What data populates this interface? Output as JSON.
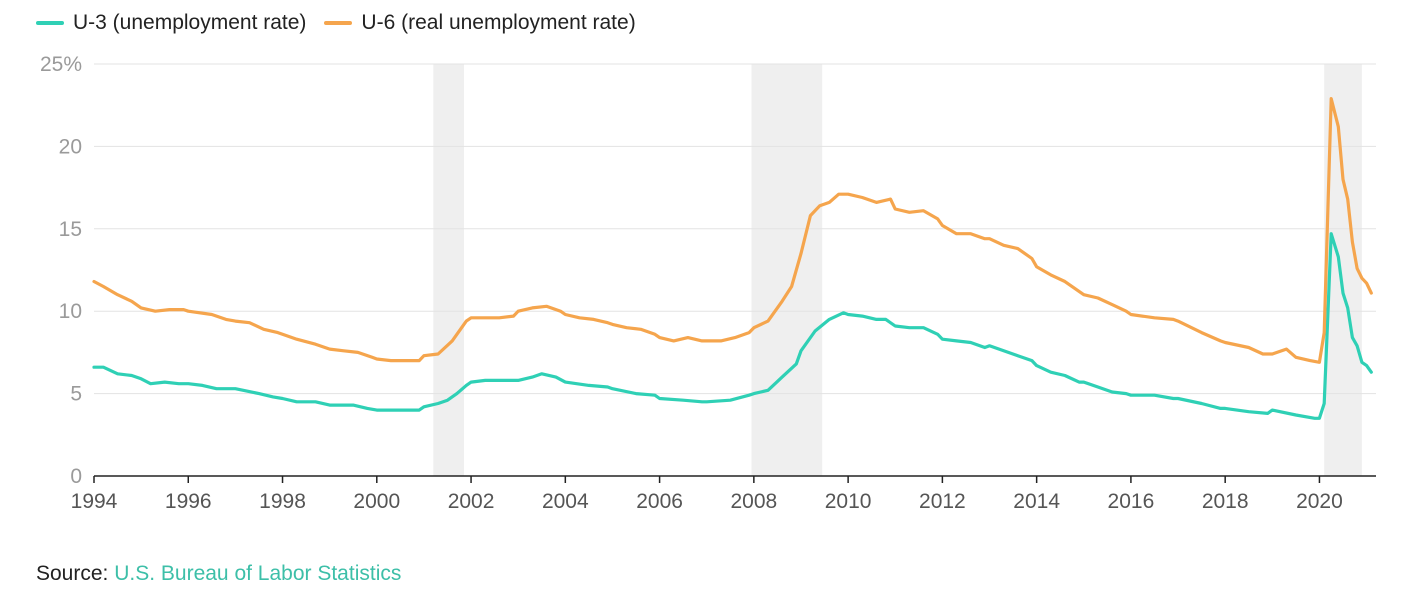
{
  "legend": [
    {
      "label": "U-3 (unemployment rate)",
      "color": "#2fd0b5"
    },
    {
      "label": "U-6 (real unemployment rate)",
      "color": "#f5a54d"
    }
  ],
  "source": {
    "prefix": "Source: ",
    "link_text": "U.S. Bureau of Labor Statistics",
    "link_color": "#3dbfa8"
  },
  "chart_data": {
    "type": "line",
    "title": "",
    "xlabel": "",
    "ylabel": "",
    "xlim": [
      1994,
      2021.2
    ],
    "ylim": [
      0,
      25
    ],
    "grid": true,
    "legend_position": "top-left",
    "x_tick_labels": [
      "1994",
      "1996",
      "1998",
      "2000",
      "2002",
      "2004",
      "2006",
      "2008",
      "2010",
      "2012",
      "2014",
      "2016",
      "2018",
      "2020"
    ],
    "y_tick_labels": [
      {
        "value": 0,
        "label": "0"
      },
      {
        "value": 5,
        "label": "5"
      },
      {
        "value": 10,
        "label": "10"
      },
      {
        "value": 15,
        "label": "15"
      },
      {
        "value": 20,
        "label": "20"
      },
      {
        "value": 25,
        "label": "25%"
      }
    ],
    "recession_shading": [
      [
        2001.2,
        2001.85
      ],
      [
        2007.95,
        2009.45
      ],
      [
        2020.1,
        2020.9
      ]
    ],
    "series": [
      {
        "name": "U-3 (unemployment rate)",
        "color": "#2fd0b5",
        "points": [
          [
            1994.0,
            6.6
          ],
          [
            1994.2,
            6.6
          ],
          [
            1994.5,
            6.2
          ],
          [
            1994.8,
            6.1
          ],
          [
            1995.0,
            5.9
          ],
          [
            1995.2,
            5.6
          ],
          [
            1995.5,
            5.7
          ],
          [
            1995.8,
            5.6
          ],
          [
            1996.0,
            5.6
          ],
          [
            1996.3,
            5.5
          ],
          [
            1996.6,
            5.3
          ],
          [
            1996.9,
            5.3
          ],
          [
            1997.0,
            5.3
          ],
          [
            1997.5,
            5.0
          ],
          [
            1997.8,
            4.8
          ],
          [
            1998.0,
            4.7
          ],
          [
            1998.3,
            4.5
          ],
          [
            1998.7,
            4.5
          ],
          [
            1999.0,
            4.3
          ],
          [
            1999.5,
            4.3
          ],
          [
            1999.8,
            4.1
          ],
          [
            2000.0,
            4.0
          ],
          [
            2000.3,
            4.0
          ],
          [
            2000.6,
            4.0
          ],
          [
            2000.9,
            4.0
          ],
          [
            2001.0,
            4.2
          ],
          [
            2001.3,
            4.4
          ],
          [
            2001.5,
            4.6
          ],
          [
            2001.7,
            5.0
          ],
          [
            2001.9,
            5.5
          ],
          [
            2002.0,
            5.7
          ],
          [
            2002.3,
            5.8
          ],
          [
            2002.7,
            5.8
          ],
          [
            2003.0,
            5.8
          ],
          [
            2003.3,
            6.0
          ],
          [
            2003.5,
            6.2
          ],
          [
            2003.8,
            6.0
          ],
          [
            2004.0,
            5.7
          ],
          [
            2004.5,
            5.5
          ],
          [
            2004.9,
            5.4
          ],
          [
            2005.0,
            5.3
          ],
          [
            2005.5,
            5.0
          ],
          [
            2005.9,
            4.9
          ],
          [
            2006.0,
            4.7
          ],
          [
            2006.5,
            4.6
          ],
          [
            2006.9,
            4.5
          ],
          [
            2007.0,
            4.5
          ],
          [
            2007.5,
            4.6
          ],
          [
            2007.9,
            4.9
          ],
          [
            2008.0,
            5.0
          ],
          [
            2008.3,
            5.2
          ],
          [
            2008.6,
            6.0
          ],
          [
            2008.9,
            6.8
          ],
          [
            2009.0,
            7.6
          ],
          [
            2009.3,
            8.8
          ],
          [
            2009.6,
            9.5
          ],
          [
            2009.9,
            9.9
          ],
          [
            2010.0,
            9.8
          ],
          [
            2010.3,
            9.7
          ],
          [
            2010.6,
            9.5
          ],
          [
            2010.8,
            9.5
          ],
          [
            2011.0,
            9.1
          ],
          [
            2011.3,
            9.0
          ],
          [
            2011.6,
            9.0
          ],
          [
            2011.9,
            8.6
          ],
          [
            2012.0,
            8.3
          ],
          [
            2012.3,
            8.2
          ],
          [
            2012.6,
            8.1
          ],
          [
            2012.9,
            7.8
          ],
          [
            2013.0,
            7.9
          ],
          [
            2013.3,
            7.6
          ],
          [
            2013.6,
            7.3
          ],
          [
            2013.9,
            7.0
          ],
          [
            2014.0,
            6.7
          ],
          [
            2014.3,
            6.3
          ],
          [
            2014.6,
            6.1
          ],
          [
            2014.9,
            5.7
          ],
          [
            2015.0,
            5.7
          ],
          [
            2015.3,
            5.4
          ],
          [
            2015.6,
            5.1
          ],
          [
            2015.9,
            5.0
          ],
          [
            2016.0,
            4.9
          ],
          [
            2016.5,
            4.9
          ],
          [
            2016.9,
            4.7
          ],
          [
            2017.0,
            4.7
          ],
          [
            2017.5,
            4.4
          ],
          [
            2017.9,
            4.1
          ],
          [
            2018.0,
            4.1
          ],
          [
            2018.5,
            3.9
          ],
          [
            2018.9,
            3.8
          ],
          [
            2019.0,
            4.0
          ],
          [
            2019.5,
            3.7
          ],
          [
            2019.9,
            3.5
          ],
          [
            2020.0,
            3.5
          ],
          [
            2020.1,
            4.4
          ],
          [
            2020.25,
            14.7
          ],
          [
            2020.4,
            13.3
          ],
          [
            2020.5,
            11.1
          ],
          [
            2020.6,
            10.2
          ],
          [
            2020.7,
            8.4
          ],
          [
            2020.8,
            7.9
          ],
          [
            2020.9,
            6.9
          ],
          [
            2021.0,
            6.7
          ],
          [
            2021.1,
            6.3
          ]
        ]
      },
      {
        "name": "U-6 (real unemployment rate)",
        "color": "#f5a54d",
        "points": [
          [
            1994.0,
            11.8
          ],
          [
            1994.2,
            11.5
          ],
          [
            1994.5,
            11.0
          ],
          [
            1994.8,
            10.6
          ],
          [
            1995.0,
            10.2
          ],
          [
            1995.3,
            10.0
          ],
          [
            1995.6,
            10.1
          ],
          [
            1995.9,
            10.1
          ],
          [
            1996.0,
            10.0
          ],
          [
            1996.5,
            9.8
          ],
          [
            1996.8,
            9.5
          ],
          [
            1997.0,
            9.4
          ],
          [
            1997.3,
            9.3
          ],
          [
            1997.6,
            8.9
          ],
          [
            1997.9,
            8.7
          ],
          [
            1998.0,
            8.6
          ],
          [
            1998.3,
            8.3
          ],
          [
            1998.7,
            8.0
          ],
          [
            1999.0,
            7.7
          ],
          [
            1999.3,
            7.6
          ],
          [
            1999.6,
            7.5
          ],
          [
            1999.9,
            7.2
          ],
          [
            2000.0,
            7.1
          ],
          [
            2000.3,
            7.0
          ],
          [
            2000.6,
            7.0
          ],
          [
            2000.9,
            7.0
          ],
          [
            2001.0,
            7.3
          ],
          [
            2001.3,
            7.4
          ],
          [
            2001.6,
            8.2
          ],
          [
            2001.8,
            9.0
          ],
          [
            2001.9,
            9.4
          ],
          [
            2002.0,
            9.6
          ],
          [
            2002.3,
            9.6
          ],
          [
            2002.6,
            9.6
          ],
          [
            2002.9,
            9.7
          ],
          [
            2003.0,
            10.0
          ],
          [
            2003.3,
            10.2
          ],
          [
            2003.6,
            10.3
          ],
          [
            2003.9,
            10.0
          ],
          [
            2004.0,
            9.8
          ],
          [
            2004.3,
            9.6
          ],
          [
            2004.6,
            9.5
          ],
          [
            2004.9,
            9.3
          ],
          [
            2005.0,
            9.2
          ],
          [
            2005.3,
            9.0
          ],
          [
            2005.6,
            8.9
          ],
          [
            2005.9,
            8.6
          ],
          [
            2006.0,
            8.4
          ],
          [
            2006.3,
            8.2
          ],
          [
            2006.6,
            8.4
          ],
          [
            2006.9,
            8.2
          ],
          [
            2007.0,
            8.2
          ],
          [
            2007.3,
            8.2
          ],
          [
            2007.6,
            8.4
          ],
          [
            2007.9,
            8.7
          ],
          [
            2008.0,
            9.0
          ],
          [
            2008.3,
            9.4
          ],
          [
            2008.6,
            10.6
          ],
          [
            2008.8,
            11.5
          ],
          [
            2009.0,
            13.5
          ],
          [
            2009.2,
            15.8
          ],
          [
            2009.4,
            16.4
          ],
          [
            2009.6,
            16.6
          ],
          [
            2009.8,
            17.1
          ],
          [
            2010.0,
            17.1
          ],
          [
            2010.3,
            16.9
          ],
          [
            2010.6,
            16.6
          ],
          [
            2010.9,
            16.8
          ],
          [
            2011.0,
            16.2
          ],
          [
            2011.3,
            16.0
          ],
          [
            2011.6,
            16.1
          ],
          [
            2011.9,
            15.6
          ],
          [
            2012.0,
            15.2
          ],
          [
            2012.3,
            14.7
          ],
          [
            2012.6,
            14.7
          ],
          [
            2012.9,
            14.4
          ],
          [
            2013.0,
            14.4
          ],
          [
            2013.3,
            14.0
          ],
          [
            2013.6,
            13.8
          ],
          [
            2013.9,
            13.2
          ],
          [
            2014.0,
            12.7
          ],
          [
            2014.3,
            12.2
          ],
          [
            2014.6,
            11.8
          ],
          [
            2014.9,
            11.2
          ],
          [
            2015.0,
            11.0
          ],
          [
            2015.3,
            10.8
          ],
          [
            2015.6,
            10.4
          ],
          [
            2015.9,
            10.0
          ],
          [
            2016.0,
            9.8
          ],
          [
            2016.5,
            9.6
          ],
          [
            2016.9,
            9.5
          ],
          [
            2017.0,
            9.4
          ],
          [
            2017.5,
            8.7
          ],
          [
            2017.9,
            8.2
          ],
          [
            2018.0,
            8.1
          ],
          [
            2018.5,
            7.8
          ],
          [
            2018.8,
            7.4
          ],
          [
            2019.0,
            7.4
          ],
          [
            2019.3,
            7.7
          ],
          [
            2019.5,
            7.2
          ],
          [
            2019.8,
            7.0
          ],
          [
            2020.0,
            6.9
          ],
          [
            2020.1,
            8.7
          ],
          [
            2020.25,
            22.9
          ],
          [
            2020.4,
            21.2
          ],
          [
            2020.5,
            18.0
          ],
          [
            2020.6,
            16.8
          ],
          [
            2020.7,
            14.2
          ],
          [
            2020.8,
            12.6
          ],
          [
            2020.9,
            12.0
          ],
          [
            2021.0,
            11.7
          ],
          [
            2021.1,
            11.1
          ]
        ]
      }
    ]
  }
}
